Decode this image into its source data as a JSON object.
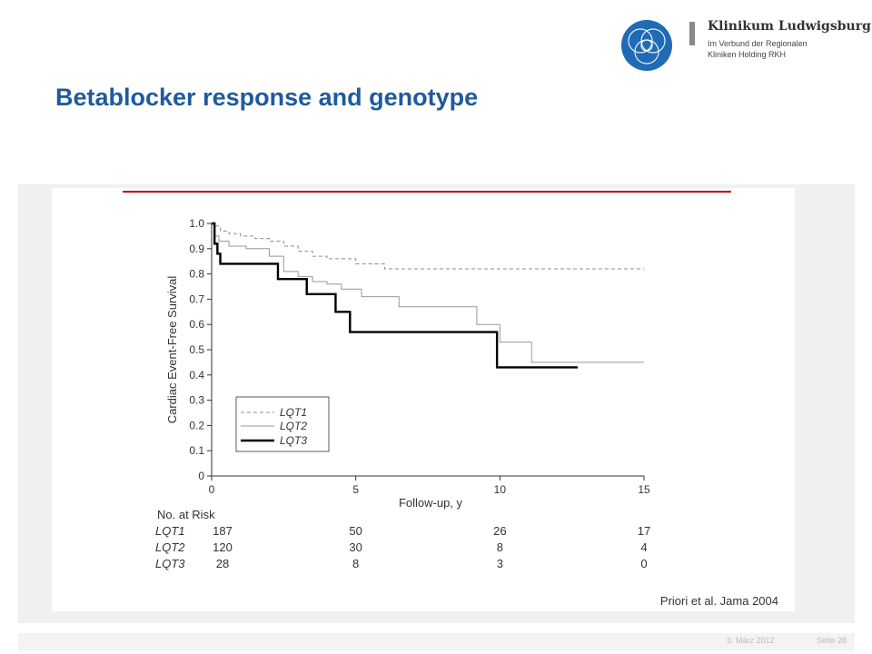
{
  "logo": {
    "name": "Klinikum Ludwigsburg",
    "subtitle_line1": "Im Verbund der Regionalen",
    "subtitle_line2": "Kliniken Holding RKH"
  },
  "slide": {
    "title": "Betablocker response and genotype",
    "citation": "Priori et al. Jama 2004",
    "date": "3. März 2012",
    "page": "Seite 28"
  },
  "colors": {
    "title": "#1f5a9e",
    "accent_rule": "#c00000",
    "logo_blue": "#1f6bb5"
  },
  "chart_data": {
    "type": "line",
    "ylabel": "Cardiac Event-Free Survival",
    "xlabel": "Follow-up, y",
    "xlim": [
      0,
      15
    ],
    "ylim": [
      0,
      1.0
    ],
    "xticks": [
      0,
      5,
      10,
      15
    ],
    "yticks": [
      0,
      0.1,
      0.2,
      0.3,
      0.4,
      0.5,
      0.6,
      0.7,
      0.8,
      0.9,
      1.0
    ],
    "ytick_labels": [
      "0",
      "0.1",
      "0.2",
      "0.3",
      "0.4",
      "0.5",
      "0.6",
      "0.7",
      "0.8",
      "0.9",
      "1.0"
    ],
    "legend_position": "bottom-left",
    "series": [
      {
        "name": "LQT1",
        "style": "dashed",
        "x": [
          0,
          0.15,
          0.3,
          0.6,
          1.0,
          1.5,
          2.0,
          2.5,
          3.0,
          3.5,
          4.0,
          5.0,
          6.0,
          15.0
        ],
        "y": [
          1.0,
          0.99,
          0.97,
          0.96,
          0.95,
          0.94,
          0.93,
          0.91,
          0.89,
          0.87,
          0.86,
          0.84,
          0.82,
          0.82
        ]
      },
      {
        "name": "LQT2",
        "style": "thin",
        "x": [
          0,
          0.1,
          0.25,
          0.6,
          1.2,
          2.0,
          2.5,
          3.0,
          3.5,
          4.0,
          4.5,
          5.2,
          6.5,
          9.2,
          10.0,
          11.1,
          15.0
        ],
        "y": [
          1.0,
          0.95,
          0.93,
          0.91,
          0.9,
          0.87,
          0.81,
          0.79,
          0.77,
          0.76,
          0.74,
          0.71,
          0.67,
          0.6,
          0.53,
          0.45,
          0.45
        ]
      },
      {
        "name": "LQT3",
        "style": "bold",
        "x": [
          0,
          0.1,
          0.2,
          0.3,
          2.3,
          3.3,
          4.3,
          4.8,
          9.9,
          12.7
        ],
        "y": [
          1.0,
          0.92,
          0.88,
          0.84,
          0.78,
          0.72,
          0.65,
          0.57,
          0.43,
          0.43
        ]
      }
    ],
    "risk_table": {
      "header": "No. at Risk",
      "rows": [
        {
          "label": "LQT1",
          "values": [
            "187",
            "50",
            "26",
            "17"
          ]
        },
        {
          "label": "LQT2",
          "values": [
            "120",
            "30",
            "8",
            "4"
          ]
        },
        {
          "label": "LQT3",
          "values": [
            "28",
            "8",
            "3",
            "0"
          ]
        }
      ]
    }
  }
}
